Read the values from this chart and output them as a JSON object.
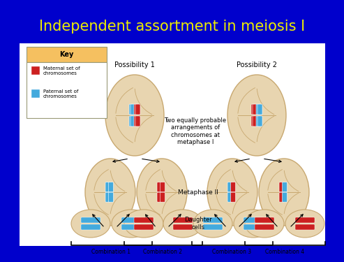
{
  "title": "Independent assortment in meiosis I",
  "title_color": "#EEEE00",
  "bg_color": "#0000CC",
  "panel_bg": "#FFFFFF",
  "title_fontsize": 15,
  "key_bg": "#F5C060",
  "key_title": "Key",
  "key_maternal": "Maternal set of\nchromosomes",
  "key_paternal": "Paternal set of\nchromosomes",
  "maternal_color": "#CC2020",
  "paternal_color": "#44AADD",
  "cell_color": "#E8D5B0",
  "cell_edge_color": "#C8A870",
  "label_possibility1": "Possibility 1",
  "label_possibility2": "Possibility 2",
  "label_metaphase2": "Metaphase II",
  "label_daughter": "Daughter\ncells",
  "label_combo1": "Combination 1",
  "label_combo2": "Combination 2",
  "label_combo3": "Combination 3",
  "label_combo4": "Combination 4",
  "label_two_equally": "Two equally probable\narrangements of\nchromosomes at\nmetaphase I"
}
